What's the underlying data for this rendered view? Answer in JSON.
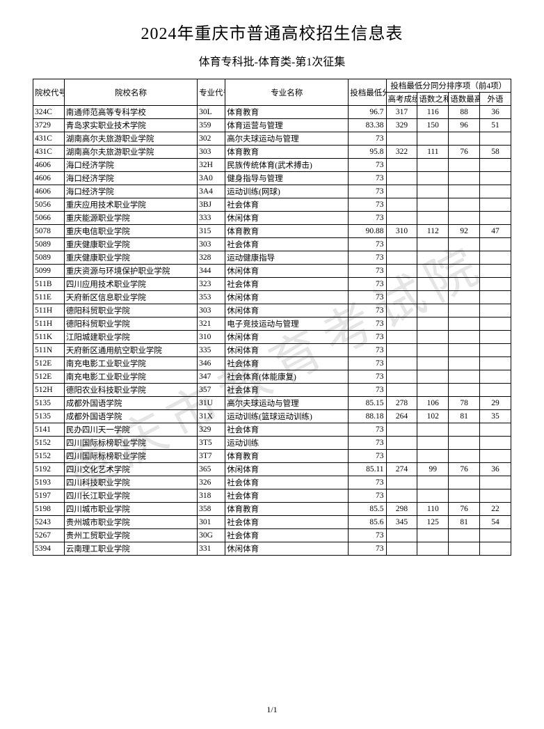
{
  "title": "2024年重庆市普通高校招生信息表",
  "subtitle": "体育专科批-体育类-第1次征集",
  "page_num": "1/1",
  "watermark": "重庆市教育考试院",
  "headers": {
    "col1": "院校代号",
    "col2": "院校名称",
    "col3": "专业代号",
    "col4": "专业名称",
    "col5": "投档最低分",
    "group": "投档最低分同分排序项（前4项）",
    "s1": "高考成绩",
    "s2": "语数之和",
    "s3": "语数最高",
    "s4": "外语"
  },
  "rows": [
    {
      "code": "324C",
      "name": "南通师范高等专科学校",
      "mcode": "30L",
      "mname": "体育教育",
      "min": "96.7",
      "s1": "317",
      "s2": "116",
      "s3": "88",
      "s4": "36"
    },
    {
      "code": "3729",
      "name": "青岛求实职业技术学院",
      "mcode": "359",
      "mname": "体育运营与管理",
      "min": "83.38",
      "s1": "329",
      "s2": "150",
      "s3": "96",
      "s4": "51"
    },
    {
      "code": "431C",
      "name": "湖南高尔夫旅游职业学院",
      "mcode": "302",
      "mname": "高尔夫球运动与管理",
      "min": "73",
      "s1": "",
      "s2": "",
      "s3": "",
      "s4": ""
    },
    {
      "code": "431C",
      "name": "湖南高尔夫旅游职业学院",
      "mcode": "303",
      "mname": "体育教育",
      "min": "95.8",
      "s1": "322",
      "s2": "111",
      "s3": "76",
      "s4": "58"
    },
    {
      "code": "4606",
      "name": "海口经济学院",
      "mcode": "32H",
      "mname": "民族传统体育(武术搏击)",
      "min": "73",
      "s1": "",
      "s2": "",
      "s3": "",
      "s4": ""
    },
    {
      "code": "4606",
      "name": "海口经济学院",
      "mcode": "3A0",
      "mname": "健身指导与管理",
      "min": "73",
      "s1": "",
      "s2": "",
      "s3": "",
      "s4": ""
    },
    {
      "code": "4606",
      "name": "海口经济学院",
      "mcode": "3A4",
      "mname": "运动训练(网球)",
      "min": "73",
      "s1": "",
      "s2": "",
      "s3": "",
      "s4": ""
    },
    {
      "code": "5056",
      "name": "重庆应用技术职业学院",
      "mcode": "3BJ",
      "mname": "社会体育",
      "min": "73",
      "s1": "",
      "s2": "",
      "s3": "",
      "s4": ""
    },
    {
      "code": "5066",
      "name": "重庆能源职业学院",
      "mcode": "333",
      "mname": "休闲体育",
      "min": "73",
      "s1": "",
      "s2": "",
      "s3": "",
      "s4": ""
    },
    {
      "code": "5078",
      "name": "重庆电信职业学院",
      "mcode": "315",
      "mname": "体育教育",
      "min": "90.88",
      "s1": "310",
      "s2": "112",
      "s3": "92",
      "s4": "47"
    },
    {
      "code": "5089",
      "name": "重庆健康职业学院",
      "mcode": "303",
      "mname": "社会体育",
      "min": "73",
      "s1": "",
      "s2": "",
      "s3": "",
      "s4": ""
    },
    {
      "code": "5089",
      "name": "重庆健康职业学院",
      "mcode": "328",
      "mname": "运动健康指导",
      "min": "73",
      "s1": "",
      "s2": "",
      "s3": "",
      "s4": ""
    },
    {
      "code": "5099",
      "name": "重庆资源与环境保护职业学院",
      "mcode": "344",
      "mname": "休闲体育",
      "min": "73",
      "s1": "",
      "s2": "",
      "s3": "",
      "s4": ""
    },
    {
      "code": "511B",
      "name": "四川应用技术职业学院",
      "mcode": "323",
      "mname": "社会体育",
      "min": "73",
      "s1": "",
      "s2": "",
      "s3": "",
      "s4": ""
    },
    {
      "code": "511E",
      "name": "天府新区信息职业学院",
      "mcode": "353",
      "mname": "休闲体育",
      "min": "73",
      "s1": "",
      "s2": "",
      "s3": "",
      "s4": ""
    },
    {
      "code": "511H",
      "name": "德阳科贸职业学院",
      "mcode": "303",
      "mname": "休闲体育",
      "min": "73",
      "s1": "",
      "s2": "",
      "s3": "",
      "s4": ""
    },
    {
      "code": "511H",
      "name": "德阳科贸职业学院",
      "mcode": "321",
      "mname": "电子竞技运动与管理",
      "min": "73",
      "s1": "",
      "s2": "",
      "s3": "",
      "s4": ""
    },
    {
      "code": "511K",
      "name": "江阳城建职业学院",
      "mcode": "310",
      "mname": "休闲体育",
      "min": "73",
      "s1": "",
      "s2": "",
      "s3": "",
      "s4": ""
    },
    {
      "code": "511N",
      "name": "天府新区通用航空职业学院",
      "mcode": "335",
      "mname": "休闲体育",
      "min": "73",
      "s1": "",
      "s2": "",
      "s3": "",
      "s4": ""
    },
    {
      "code": "512E",
      "name": "南充电影工业职业学院",
      "mcode": "346",
      "mname": "社会体育",
      "min": "73",
      "s1": "",
      "s2": "",
      "s3": "",
      "s4": ""
    },
    {
      "code": "512E",
      "name": "南充电影工业职业学院",
      "mcode": "347",
      "mname": "社会体育(体能康复)",
      "min": "73",
      "s1": "",
      "s2": "",
      "s3": "",
      "s4": ""
    },
    {
      "code": "512H",
      "name": "德阳农业科技职业学院",
      "mcode": "357",
      "mname": "社会体育",
      "min": "73",
      "s1": "",
      "s2": "",
      "s3": "",
      "s4": ""
    },
    {
      "code": "5135",
      "name": "成都外国语学院",
      "mcode": "31U",
      "mname": "高尔夫球运动与管理",
      "min": "85.15",
      "s1": "278",
      "s2": "106",
      "s3": "78",
      "s4": "29"
    },
    {
      "code": "5135",
      "name": "成都外国语学院",
      "mcode": "31X",
      "mname": "运动训练(篮球运动训练)",
      "min": "88.18",
      "s1": "264",
      "s2": "102",
      "s3": "81",
      "s4": "35"
    },
    {
      "code": "5141",
      "name": "民办四川天一学院",
      "mcode": "329",
      "mname": "社会体育",
      "min": "73",
      "s1": "",
      "s2": "",
      "s3": "",
      "s4": ""
    },
    {
      "code": "5152",
      "name": "四川国际标榜职业学院",
      "mcode": "3T5",
      "mname": "运动训练",
      "min": "73",
      "s1": "",
      "s2": "",
      "s3": "",
      "s4": ""
    },
    {
      "code": "5152",
      "name": "四川国际标榜职业学院",
      "mcode": "3T7",
      "mname": "体育教育",
      "min": "73",
      "s1": "",
      "s2": "",
      "s3": "",
      "s4": ""
    },
    {
      "code": "5192",
      "name": "四川文化艺术学院",
      "mcode": "365",
      "mname": "休闲体育",
      "min": "85.11",
      "s1": "274",
      "s2": "99",
      "s3": "76",
      "s4": "36"
    },
    {
      "code": "5193",
      "name": "四川科技职业学院",
      "mcode": "326",
      "mname": "社会体育",
      "min": "73",
      "s1": "",
      "s2": "",
      "s3": "",
      "s4": ""
    },
    {
      "code": "5197",
      "name": "四川长江职业学院",
      "mcode": "318",
      "mname": "社会体育",
      "min": "73",
      "s1": "",
      "s2": "",
      "s3": "",
      "s4": ""
    },
    {
      "code": "5198",
      "name": "四川城市职业学院",
      "mcode": "358",
      "mname": "体育教育",
      "min": "85.5",
      "s1": "298",
      "s2": "110",
      "s3": "76",
      "s4": "22"
    },
    {
      "code": "5243",
      "name": "贵州城市职业学院",
      "mcode": "301",
      "mname": "社会体育",
      "min": "85.6",
      "s1": "345",
      "s2": "125",
      "s3": "81",
      "s4": "54"
    },
    {
      "code": "5267",
      "name": "贵州工贸职业学院",
      "mcode": "30G",
      "mname": "社会体育",
      "min": "73",
      "s1": "",
      "s2": "",
      "s3": "",
      "s4": ""
    },
    {
      "code": "5394",
      "name": "云南理工职业学院",
      "mcode": "331",
      "mname": "休闲体育",
      "min": "73",
      "s1": "",
      "s2": "",
      "s3": "",
      "s4": ""
    }
  ]
}
